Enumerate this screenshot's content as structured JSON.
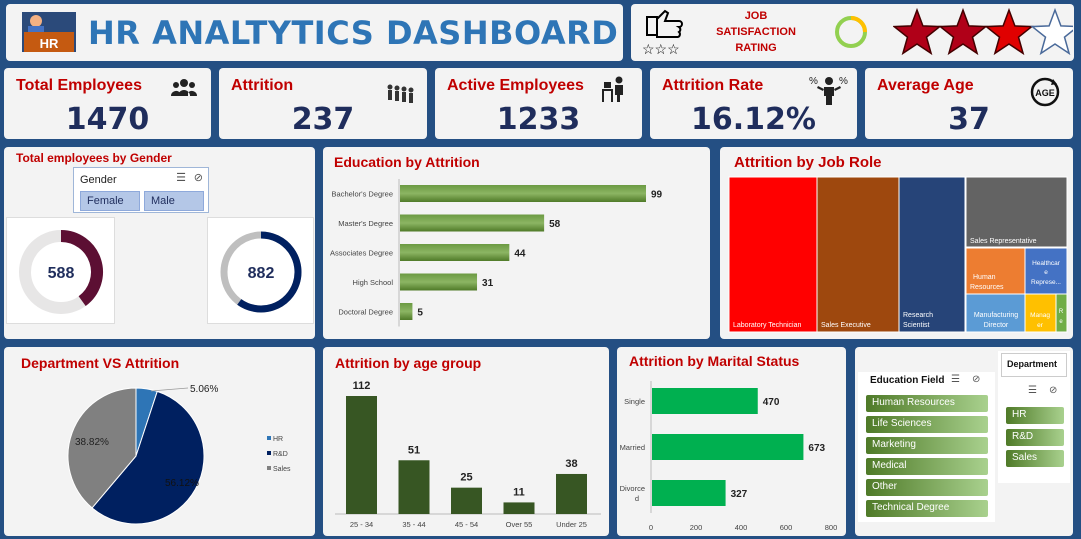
{
  "header": {
    "logo_text": "HR",
    "title": "HR ANALTYTICS DASHBOARD"
  },
  "satisfaction": {
    "line1": "JOB",
    "line2": "SATISFACTION",
    "line3": "RATING",
    "stars_total": 4,
    "stars_filled": 3
  },
  "kpis": [
    {
      "label": "Total Employees",
      "value": "1470",
      "icon": "people-group-icon"
    },
    {
      "label": "Attrition",
      "value": "237",
      "icon": "people-leaving-icon"
    },
    {
      "label": "Active Employees",
      "value": "1233",
      "icon": "desk-worker-icon"
    },
    {
      "label": "Attrition Rate",
      "value": "16.12%",
      "icon": "percent-person-icon"
    },
    {
      "label": "Average Age",
      "value": "37",
      "icon": "age-cycle-icon"
    }
  ],
  "gender": {
    "title": "Total employees by Gender",
    "slicer_label": "Gender",
    "options": [
      "Female",
      "Male"
    ],
    "female_value": "588",
    "male_value": "882"
  },
  "colors": {
    "bar_green": "#548235",
    "dark_green": "#375623",
    "bright_green": "#00b050",
    "navy": "#002060",
    "maroon": "#5c0f33",
    "red": "#c00000"
  },
  "education_fields": {
    "title": "Education Field",
    "items": [
      "Human Resources",
      "Life Sciences",
      "Marketing",
      "Medical",
      "Other",
      "Technical Degree"
    ]
  },
  "department_slicer": {
    "title": "Department",
    "items": [
      "HR",
      "R&D",
      "Sales"
    ]
  },
  "chart_data": [
    {
      "id": "education",
      "type": "bar",
      "orientation": "horizontal",
      "title": "Education by Attrition",
      "categories": [
        "Bachelor's Degree",
        "Master's Degree",
        "Associates Degree",
        "High School",
        "Doctoral Degree"
      ],
      "values": [
        99,
        58,
        44,
        31,
        5
      ]
    },
    {
      "id": "jobrole",
      "type": "treemap",
      "title": "Attrition by Job Role",
      "categories": [
        "Laboratory Technician",
        "Sales Executive",
        "Research Scientist",
        "Sales Representative",
        "Human Resources",
        "Healthcare Represe...",
        "Manufacturing Director",
        "Manag er",
        "R e"
      ],
      "colors": [
        "#ff0000",
        "#9e480e",
        "#264478",
        "#636363",
        "#ed7d31",
        "#4472c4",
        "#5b9bd5",
        "#ffc000",
        "#70ad47"
      ]
    },
    {
      "id": "department",
      "type": "pie",
      "title": "Department VS Attrition",
      "categories": [
        "HR",
        "R&D",
        "Sales"
      ],
      "values": [
        5.06,
        56.12,
        38.82
      ],
      "labels": [
        "5.06%",
        "56.12%",
        "38.82%"
      ],
      "colors": [
        "#2e75b6",
        "#002060",
        "#808080"
      ],
      "legend": "right"
    },
    {
      "id": "age",
      "type": "bar",
      "title": "Attrition by age group",
      "categories": [
        "25 - 34",
        "35 - 44",
        "45 - 54",
        "Over 55",
        "Under 25"
      ],
      "values": [
        112,
        51,
        25,
        11,
        38
      ]
    },
    {
      "id": "marital",
      "type": "bar",
      "orientation": "horizontal",
      "title": "Attrition by Marital Status",
      "categories": [
        "Single",
        "Married",
        "Divorced"
      ],
      "values": [
        470,
        673,
        327
      ],
      "xticks": [
        "0",
        "200",
        "400",
        "600",
        "800"
      ],
      "xlim": [
        0,
        800
      ]
    }
  ]
}
